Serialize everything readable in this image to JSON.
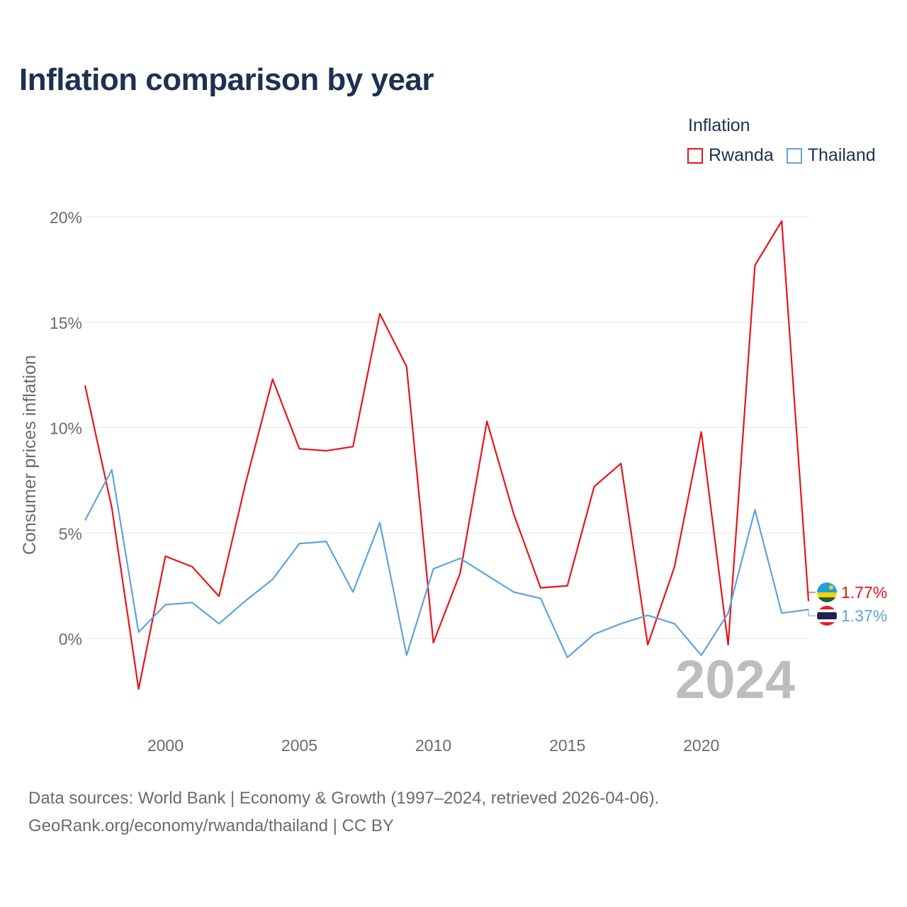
{
  "title": "Inflation comparison by year",
  "legend": {
    "title": "Inflation",
    "items": [
      {
        "label": "Rwanda",
        "color": "#e8141a"
      },
      {
        "label": "Thailand",
        "color": "#5ea3e0"
      }
    ]
  },
  "chart_data": {
    "type": "line",
    "title": "Inflation comparison by year",
    "xlabel": "",
    "ylabel": "Consumer prices inflation",
    "xlim": [
      1997,
      2024
    ],
    "ylim": [
      -3.7,
      20
    ],
    "grid": true,
    "legend_position": "top-right",
    "x_ticks": [
      2000,
      2005,
      2010,
      2015,
      2020
    ],
    "x_tick_labels": [
      "2000",
      "2005",
      "2010",
      "2015",
      "2020"
    ],
    "y_ticks": [
      0,
      5,
      10,
      15,
      20
    ],
    "y_tick_labels": [
      "0%",
      "5%",
      "10%",
      "15%",
      "20%"
    ],
    "x": [
      1997,
      1998,
      1999,
      2000,
      2001,
      2002,
      2003,
      2004,
      2005,
      2006,
      2007,
      2008,
      2009,
      2010,
      2011,
      2012,
      2013,
      2014,
      2015,
      2016,
      2017,
      2018,
      2019,
      2020,
      2021,
      2022,
      2023,
      2024
    ],
    "series": [
      {
        "name": "Rwanda",
        "color": "#e8141a",
        "values": [
          12.0,
          6.2,
          -2.4,
          3.9,
          3.4,
          2.0,
          7.4,
          12.3,
          9.0,
          8.9,
          9.1,
          15.4,
          12.9,
          -0.2,
          3.1,
          10.3,
          5.9,
          2.4,
          2.5,
          7.2,
          8.3,
          -0.3,
          3.4,
          9.8,
          -0.3,
          17.7,
          19.8,
          1.77
        ]
      },
      {
        "name": "Thailand",
        "color": "#5ea3e0",
        "values": [
          5.6,
          8.0,
          0.3,
          1.6,
          1.7,
          0.7,
          1.8,
          2.8,
          4.5,
          4.6,
          2.2,
          5.5,
          -0.8,
          3.3,
          3.8,
          3.0,
          2.2,
          1.9,
          -0.9,
          0.2,
          0.7,
          1.1,
          0.7,
          -0.8,
          1.2,
          6.1,
          1.2,
          1.37
        ]
      }
    ],
    "end_labels": [
      "1.77%",
      "1.37%"
    ],
    "year_watermark": "2024"
  },
  "source": {
    "line1": "Data sources: World Bank | Economy & Growth (1997–2024, retrieved 2026-04-06).",
    "line2": "GeoRank.org/economy/rwanda/thailand | CC BY"
  }
}
